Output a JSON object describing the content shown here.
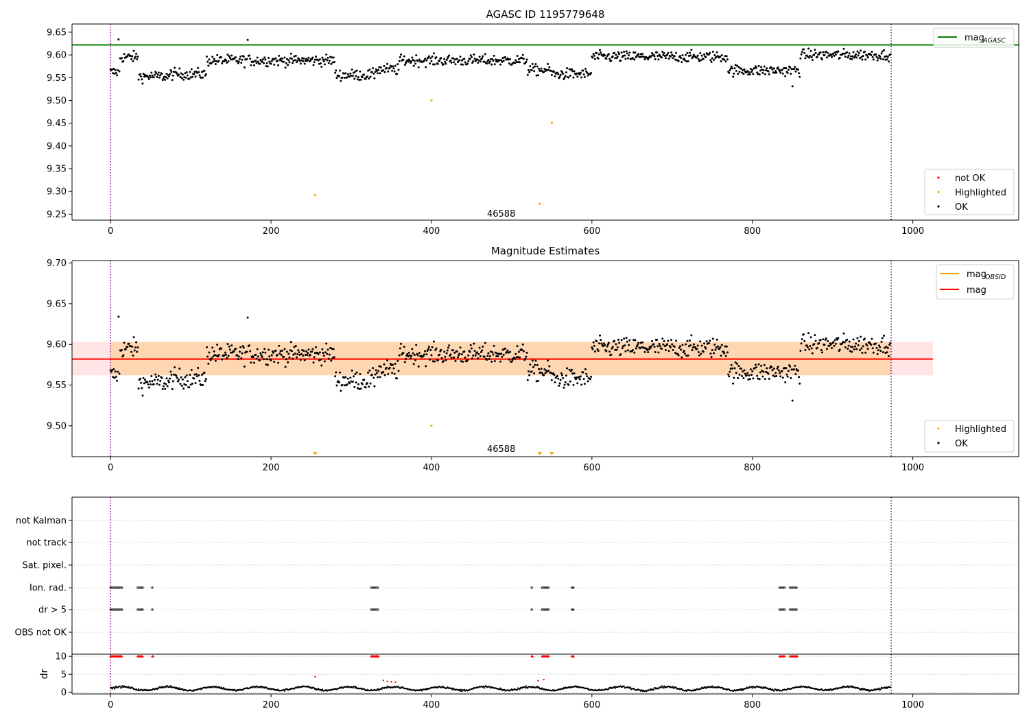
{
  "chart_data": [
    {
      "type": "scatter",
      "title": "AGASC ID 1195779648",
      "xlim": [
        -48,
        1132
      ],
      "ylim": [
        9.237,
        9.668
      ],
      "xticks": [
        "0",
        "200",
        "400",
        "600",
        "800",
        "1000"
      ],
      "yticks": [
        "9.25",
        "9.30",
        "9.35",
        "9.40",
        "9.45",
        "9.50",
        "9.55",
        "9.60",
        "9.65"
      ],
      "vlines": [
        0,
        973
      ],
      "hline": {
        "label": "mag",
        "label_sub": "AGASC",
        "value": 9.622,
        "color": "#008000"
      },
      "annotation": {
        "text": "46588",
        "x": 487,
        "y": 9.252
      },
      "legend_lines_position": "top-right",
      "legend_points_position": "bottom-right",
      "legend_points": [
        {
          "label": "not OK",
          "color": "#ff0000"
        },
        {
          "label": "Highlighted",
          "color": "#ffa500"
        },
        {
          "label": "OK",
          "color": "#000000"
        }
      ],
      "series": [
        {
          "name": "OK",
          "color": "#000000",
          "n_points": 973,
          "x_range": [
            0,
            973
          ],
          "y_center": 9.58,
          "y_spread": 0.025
        },
        {
          "name": "Highlighted",
          "color": "#ffa500",
          "points": [
            [
              255,
              9.292
            ],
            [
              400,
              9.5
            ],
            [
              535,
              9.273
            ],
            [
              550,
              9.451
            ]
          ]
        }
      ]
    },
    {
      "type": "scatter",
      "title": "Magnitude Estimates",
      "xlim": [
        -48,
        1132
      ],
      "ylim": [
        9.462,
        9.703
      ],
      "xticks": [
        "0",
        "200",
        "400",
        "600",
        "800",
        "1000"
      ],
      "yticks": [
        "9.50",
        "9.55",
        "9.60",
        "9.65",
        "9.70"
      ],
      "vlines": [
        0,
        973
      ],
      "mag_obsid": {
        "label": "mag",
        "label_sub": "OBSID",
        "value": 9.582,
        "band": [
          9.562,
          9.603
        ],
        "x_range": [
          0,
          973
        ],
        "color": "#ffa500"
      },
      "mag": {
        "label": "mag",
        "value": 9.582,
        "band": [
          9.562,
          9.603
        ],
        "x_range": [
          -48,
          1025
        ],
        "color": "#ff0000"
      },
      "annotation": {
        "text": "46588",
        "x": 487,
        "y": 9.472
      },
      "offscale_markers": [
        255,
        535,
        550
      ],
      "legend_lines_position": "top-right",
      "legend_points_position": "bottom-right",
      "legend_points": [
        {
          "label": "Highlighted",
          "color": "#ffa500"
        },
        {
          "label": "OK",
          "color": "#000000"
        }
      ],
      "series": [
        {
          "name": "OK",
          "color": "#000000",
          "n_points": 973,
          "x_range": [
            0,
            973
          ],
          "y_center": 9.58,
          "y_spread": 0.025
        },
        {
          "name": "Highlighted",
          "color": "#ffa500",
          "points": [
            [
              400,
              9.5
            ]
          ]
        }
      ]
    },
    {
      "type": "scatter",
      "title": "",
      "xlim": [
        -48,
        1132
      ],
      "categories": [
        "not Kalman",
        "not track",
        "Sat. pixel.",
        "Ion. rad.",
        "dr > 5",
        "OBS not OK"
      ],
      "vlines": [
        0,
        973
      ],
      "flag_intervals": {
        "Ion. rad.": [
          [
            0,
            14
          ],
          [
            34,
            40
          ],
          [
            52,
            53
          ],
          [
            325,
            334
          ],
          [
            525,
            526
          ],
          [
            538,
            546
          ],
          [
            575,
            577
          ],
          [
            834,
            840
          ],
          [
            847,
            856
          ]
        ],
        "dr > 5": [
          [
            0,
            14
          ],
          [
            34,
            40
          ],
          [
            52,
            53
          ],
          [
            325,
            334
          ],
          [
            525,
            526
          ],
          [
            538,
            546
          ],
          [
            575,
            577
          ],
          [
            834,
            840
          ],
          [
            847,
            856
          ]
        ]
      }
    },
    {
      "type": "scatter",
      "title": "",
      "ylabel": "dr",
      "xlim": [
        -48,
        1132
      ],
      "ylim": [
        -0.5,
        10.6
      ],
      "xticks": [
        "0",
        "200",
        "400",
        "600",
        "800",
        "1000"
      ],
      "yticks": [
        "0",
        "5",
        "10"
      ],
      "vlines": [
        0,
        973
      ],
      "series": [
        {
          "name": "OK",
          "color": "#000000",
          "n_points": 973,
          "x_range": [
            0,
            973
          ],
          "y_center": 1.2,
          "y_spread": 0.6
        },
        {
          "name": "not OK",
          "color": "#ff0000",
          "clipped_at": 10,
          "x_intervals": [
            [
              0,
              14
            ],
            [
              34,
              40
            ],
            [
              52,
              53
            ],
            [
              325,
              334
            ],
            [
              525,
              526
            ],
            [
              538,
              546
            ],
            [
              575,
              577
            ],
            [
              834,
              840
            ],
            [
              847,
              856
            ]
          ]
        },
        {
          "name": "Highlighted",
          "color": "#ffa500",
          "points": [
            [
              255,
              4.3
            ],
            [
              340,
              3.3
            ],
            [
              345,
              3.0
            ],
            [
              350,
              2.9
            ],
            [
              355,
              2.8
            ],
            [
              533,
              3.2
            ],
            [
              540,
              3.5
            ]
          ]
        }
      ]
    }
  ]
}
